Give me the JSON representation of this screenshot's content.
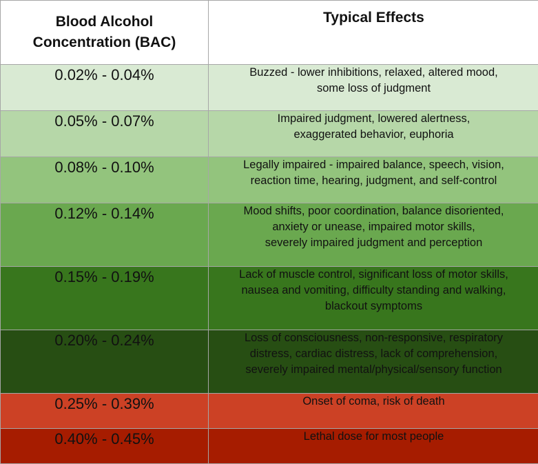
{
  "header": {
    "col1_line1": "Blood Alcohol",
    "col1_line2": "Concentration (BAC)",
    "col2": "Typical Effects"
  },
  "rows": [
    {
      "range": "0.02% - 0.04%",
      "effects": [
        "Buzzed - lower inhibitions, relaxed, altered mood,",
        "some loss of judgment"
      ],
      "color": "#d9ead3",
      "text_color": "#111111"
    },
    {
      "range": "0.05% - 0.07%",
      "effects": [
        "Impaired judgment, lowered alertness,",
        "exaggerated behavior, euphoria"
      ],
      "color": "#b6d7a8",
      "text_color": "#111111"
    },
    {
      "range": "0.08% - 0.10%",
      "effects": [
        "Legally impaired - impaired balance, speech, vision,",
        "reaction time, hearing, judgment, and self-control"
      ],
      "color": "#93c47d",
      "text_color": "#111111"
    },
    {
      "range": "0.12% - 0.14%",
      "effects": [
        "Mood shifts, poor coordination, balance disoriented,",
        "anxiety or unease, impaired motor skills,",
        "severely impaired judgment and perception"
      ],
      "color": "#6aa84f",
      "text_color": "#111111"
    },
    {
      "range": "0.15% - 0.19%",
      "effects": [
        "Lack of muscle control, significant loss of motor skills,",
        "nausea and vomiting, difficulty standing and walking,",
        "blackout symptoms"
      ],
      "color": "#38761d",
      "text_color": "#111111"
    },
    {
      "range": "0.20% - 0.24%",
      "effects": [
        "Loss of consciousness, non-responsive, respiratory",
        "distress, cardiac distress, lack of comprehension,",
        "severely impaired mental/physical/sensory function"
      ],
      "color": "#274e13",
      "text_color": "#111111"
    },
    {
      "range": "0.25% - 0.39%",
      "effects": [
        "Onset of coma, risk of death"
      ],
      "color": "#cc4125",
      "text_color": "#111111"
    },
    {
      "range": "0.40% - 0.45%",
      "effects": [
        "Lethal dose for most people"
      ],
      "color": "#a61c00",
      "text_color": "#111111"
    }
  ]
}
